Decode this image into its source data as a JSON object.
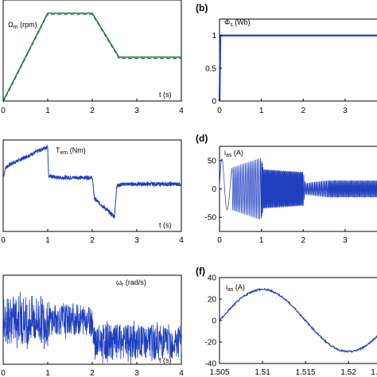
{
  "chart_data": [
    {
      "id": "a",
      "type": "line",
      "panel_label": "",
      "ylabel": "Ωm (rpm)",
      "ylabel_main": "Ω",
      "ylabel_sub": "m",
      "ylabel_unit": " (rpm)",
      "xlabel": "t (s)",
      "xlim": [
        0,
        4
      ],
      "ylim": [
        0,
        1.15
      ],
      "xticks": [
        "0",
        "1",
        "2",
        "3",
        "4"
      ],
      "series": [
        {
          "name": "",
          "color": "#1a8f1a",
          "style": "solid",
          "x": [
            0,
            1,
            2,
            2.6,
            4
          ],
          "y": [
            0,
            1.0,
            1.0,
            0.5,
            0.5
          ]
        },
        {
          "name": "",
          "color": "#3455a8",
          "style": "dashed",
          "x": [
            0,
            1,
            2,
            2.6,
            4
          ],
          "y": [
            0,
            1.0,
            1.0,
            0.5,
            0.5
          ]
        }
      ]
    },
    {
      "id": "b",
      "type": "line",
      "panel_label": "(b)",
      "ylabel": "Φs (Wb)",
      "ylabel_main": "Φ",
      "ylabel_sub": "s",
      "ylabel_unit": " (Wb)",
      "xlabel": "",
      "xlim": [
        0,
        3.8
      ],
      "ylim": [
        0,
        1.25
      ],
      "xticks": [
        "0",
        "1",
        "2",
        "3"
      ],
      "yticks": [
        "0",
        "0.5",
        "1"
      ],
      "series": [
        {
          "name": "",
          "color": "#1f3fbf",
          "style": "solid",
          "x": [
            0,
            0.02,
            3.8
          ],
          "y": [
            0,
            1.0,
            1.0
          ]
        }
      ]
    },
    {
      "id": "c",
      "type": "line",
      "panel_label": "",
      "ylabel": "Tem (Nm)",
      "ylabel_main": "T",
      "ylabel_sub": "em",
      "ylabel_unit": " (Nm)",
      "xlabel": "t (s)",
      "xlim": [
        0,
        4
      ],
      "ylim": [
        -1.6,
        1.2
      ],
      "xticks": [
        "0",
        "1",
        "2",
        "3",
        "4"
      ],
      "series": [
        {
          "name": "",
          "color": "#1f3fbf",
          "style": "noisy",
          "x": [
            0,
            0.05,
            0.15,
            1.0,
            1.02,
            1.2,
            2.0,
            2.05,
            2.5,
            2.55,
            2.7,
            4.0
          ],
          "y": [
            0,
            0.35,
            0.45,
            1.0,
            0.1,
            0.05,
            0.05,
            -0.6,
            -1.15,
            -0.2,
            -0.15,
            -0.15
          ]
        }
      ]
    },
    {
      "id": "d",
      "type": "line",
      "panel_label": "(d)",
      "ylabel": "ias (A)",
      "ylabel_main": "i",
      "ylabel_sub": "as",
      "ylabel_unit": " (A)",
      "xlabel": "",
      "xlim": [
        0,
        3.8
      ],
      "ylim": [
        -75,
        75
      ],
      "xticks": [
        "0",
        "1",
        "2",
        "3"
      ],
      "yticks": [
        "-50",
        "0",
        "50"
      ],
      "series": [
        {
          "name": "",
          "color": "#1f3fbf",
          "style": "oscillation",
          "envelope_x": [
            0,
            0.2,
            1.0,
            1.05,
            2.0,
            2.05,
            2.6,
            3.8
          ],
          "envelope_y": [
            60,
            35,
            55,
            35,
            30,
            10,
            15,
            15
          ]
        }
      ]
    },
    {
      "id": "e",
      "type": "line",
      "panel_label": "",
      "ylabel": "ωr (rad/s)",
      "ylabel_main": "ω",
      "ylabel_sub": "r",
      "ylabel_unit": " (rad/s)",
      "xlabel": "t (s)",
      "xlim": [
        0,
        4
      ],
      "ylim": [
        -1,
        1
      ],
      "xticks": [
        "0",
        "1",
        "2",
        "3",
        "4"
      ],
      "series": [
        {
          "name": "",
          "color": "#1f3fbf",
          "style": "band",
          "band_x": [
            0,
            1,
            1.05,
            2,
            2.05,
            4
          ],
          "band_lo": [
            -0.55,
            -0.55,
            -0.35,
            -0.35,
            -0.9,
            -0.9
          ],
          "band_hi": [
            0.55,
            0.55,
            0.35,
            0.35,
            -0.1,
            -0.1
          ]
        }
      ]
    },
    {
      "id": "f",
      "type": "line",
      "panel_label": "(f)",
      "ylabel": "ias (A)",
      "ylabel_main": "i",
      "ylabel_sub": "as",
      "ylabel_unit": " (A)",
      "xlabel": "",
      "xlim": [
        1.505,
        1.5235
      ],
      "ylim": [
        -40,
        40
      ],
      "xticks": [
        "1.505",
        "1.51",
        "1.515",
        "1.52",
        "1.52"
      ],
      "yticks": [
        "-40",
        "-20",
        "0",
        "20",
        "40"
      ],
      "series": [
        {
          "name": "",
          "color": "#1f3fbf",
          "style": "solid",
          "amplitude": 29,
          "period": 0.02,
          "phase_zero": 1.505
        }
      ]
    }
  ]
}
